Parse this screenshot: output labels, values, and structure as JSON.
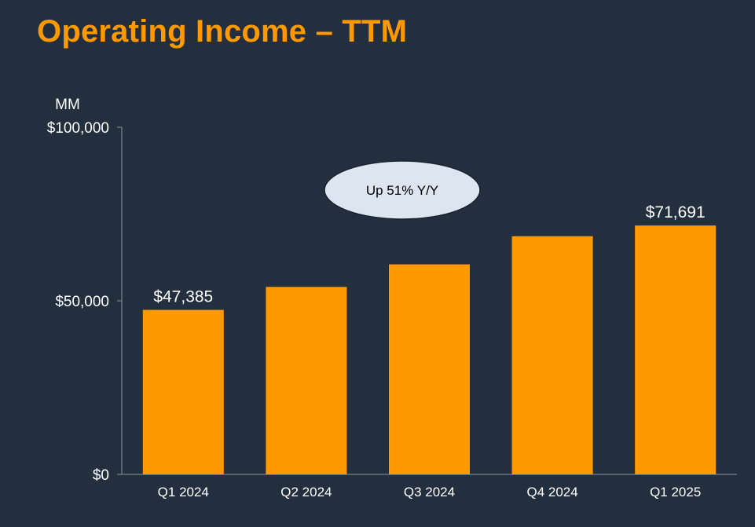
{
  "page": {
    "title": "Operating Income – TTM"
  },
  "chart_data": {
    "type": "bar",
    "title": "Operating Income – TTM",
    "unit_label": "MM",
    "categories": [
      "Q1 2024",
      "Q2 2024",
      "Q3 2024",
      "Q4 2024",
      "Q1 2025"
    ],
    "values": [
      47385,
      54000,
      60500,
      68600,
      71691
    ],
    "data_labels": [
      "$47,385",
      "",
      "",
      "",
      "$71,691"
    ],
    "ylim": [
      0,
      100000
    ],
    "yticks": [
      0,
      50000,
      100000
    ],
    "ytick_labels": [
      "$0",
      "$50,000",
      "$100,000"
    ],
    "xlabel": "",
    "ylabel": "",
    "grid": false,
    "annotation": "Up 51% Y/Y",
    "bar_color": "#ff9900",
    "background_color": "#232f3e",
    "axis_color": "#8c949e",
    "callout_fill": "#dde6f0"
  }
}
